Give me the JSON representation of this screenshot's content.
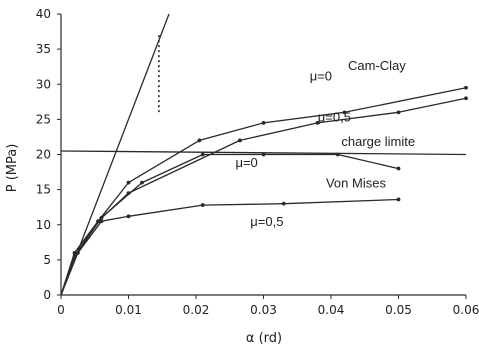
{
  "chart_data": {
    "type": "line",
    "title": "",
    "xlabel": "α (rd)",
    "ylabel": "P (MPa)",
    "xlim": [
      0,
      0.06
    ],
    "ylim": [
      0,
      40
    ],
    "xticks": [
      0,
      0.01,
      0.02,
      0.03,
      0.04,
      0.05,
      0.06
    ],
    "xtick_labels": [
      "0",
      "0.01",
      "0.02",
      "0.03",
      "0.04",
      "0.05",
      "0.06"
    ],
    "yticks": [
      0,
      5,
      10,
      15,
      20,
      25,
      30,
      35,
      40
    ],
    "ytick_labels": [
      "0",
      "5",
      "10",
      "15",
      "20",
      "25",
      "30",
      "35",
      "40"
    ],
    "grid": false,
    "series": [
      {
        "key": "elastic",
        "x": [
          0,
          0.016
        ],
        "y": [
          0,
          40
        ],
        "marker": false
      },
      {
        "key": "camclay_mu0",
        "x": [
          0,
          0.002,
          0.0055,
          0.01,
          0.0205,
          0.03,
          0.042,
          0.06
        ],
        "y": [
          0,
          6,
          10.5,
          16,
          22,
          24.5,
          26,
          29.5
        ],
        "marker": true
      },
      {
        "key": "camclay_mu05",
        "x": [
          0,
          0.002,
          0.0055,
          0.01,
          0.0265,
          0.038,
          0.05,
          0.06
        ],
        "y": [
          0,
          5.5,
          10.5,
          14.5,
          22,
          24.5,
          26,
          28
        ],
        "marker": true
      },
      {
        "key": "vonmises_mu0",
        "x": [
          0,
          0.002,
          0.006,
          0.012,
          0.021,
          0.03,
          0.041,
          0.05
        ],
        "y": [
          0,
          5.5,
          11,
          16,
          20,
          20,
          20,
          18
        ],
        "marker": true
      },
      {
        "key": "vonmises_mu05",
        "x": [
          0,
          0.0025,
          0.006,
          0.01,
          0.021,
          0.033,
          0.05
        ],
        "y": [
          0,
          6,
          10.5,
          11.2,
          12.8,
          13,
          13.6
        ],
        "marker": true
      },
      {
        "key": "charge_limite",
        "x": [
          0,
          0.06
        ],
        "y": [
          20.5,
          20
        ],
        "marker": false
      },
      {
        "key": "dotted_marker",
        "x": [
          0.0145,
          0.0145
        ],
        "y": [
          37,
          26
        ],
        "marker": false,
        "dashed": true
      }
    ],
    "annotations": [
      {
        "text": "Cam-Clay",
        "x": 0.0468,
        "y": 32
      },
      {
        "text": "μ=0",
        "x": 0.0385,
        "y": 30.5
      },
      {
        "text": "μ=0,5",
        "x": 0.0405,
        "y": 24.7
      },
      {
        "text": "charge limite",
        "x": 0.047,
        "y": 21.2
      },
      {
        "text": "μ=0",
        "x": 0.0275,
        "y": 18.2
      },
      {
        "text": "Von Mises",
        "x": 0.0437,
        "y": 15.3
      },
      {
        "text": "μ=0,5",
        "x": 0.0305,
        "y": 9.8
      }
    ],
    "colors": {
      "line": "#2a2a2a",
      "marker": "#2a2a2a",
      "text": "#222222"
    }
  }
}
